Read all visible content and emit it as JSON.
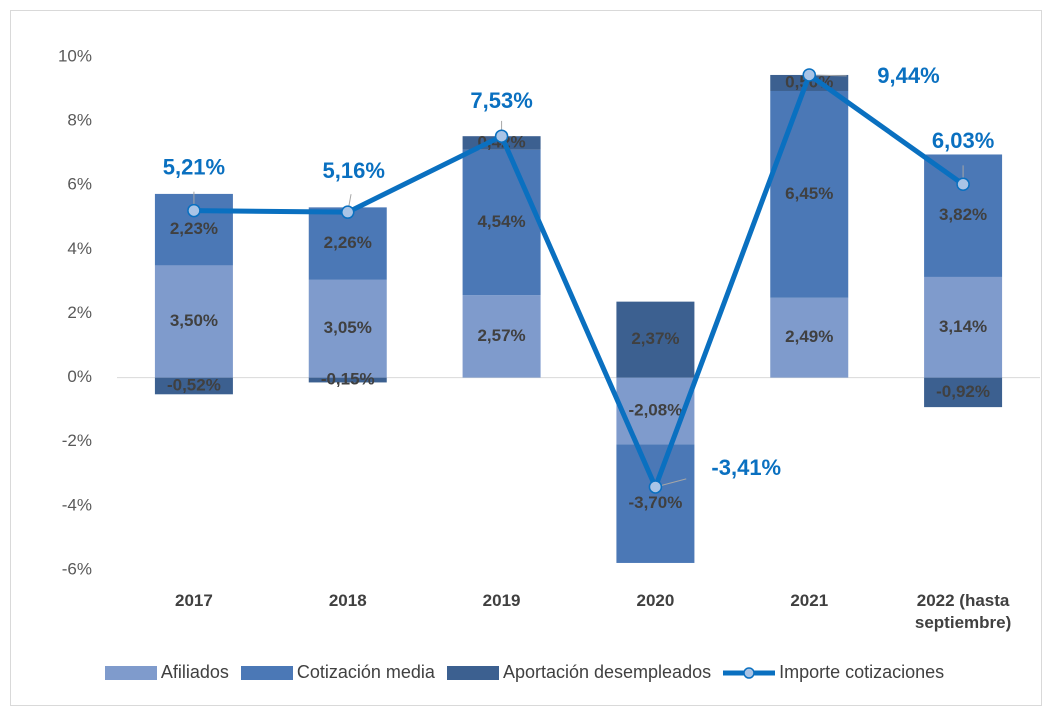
{
  "chart_data": {
    "type": "bar",
    "categories": [
      "2017",
      "2018",
      "2019",
      "2020",
      "2021",
      "2022 (hasta septiembre)"
    ],
    "series": [
      {
        "name": "Afiliados",
        "color": "#7f9bcc",
        "type": "bar",
        "values": [
          3.5,
          3.05,
          2.57,
          -2.08,
          2.49,
          3.14
        ],
        "value_labels": [
          "3,50%",
          "3,05%",
          "2,57%",
          "-2,08%",
          "2,49%",
          "3,14%"
        ]
      },
      {
        "name": "Cotización media",
        "color": "#4b78b6",
        "type": "bar",
        "values": [
          2.23,
          2.26,
          4.54,
          -3.7,
          6.45,
          3.82
        ],
        "value_labels": [
          "2,23%",
          "2,26%",
          "4,54%",
          "-3,70%",
          "6,45%",
          "3,82%"
        ]
      },
      {
        "name": "Aportación desempleados",
        "color": "#3c6090",
        "type": "bar",
        "values": [
          -0.52,
          -0.15,
          0.42,
          2.37,
          0.5,
          -0.92
        ],
        "value_labels": [
          "-0,52%",
          "-0,15%",
          "0,42%",
          "2,37%",
          "0,50%",
          "-0,92%"
        ]
      },
      {
        "name": "Importe cotizaciones",
        "color": "#0a70c0",
        "type": "line",
        "values": [
          5.21,
          5.16,
          7.53,
          -3.41,
          9.44,
          6.03
        ],
        "value_labels": [
          "5,21%",
          "5,16%",
          "7,53%",
          "-3,41%",
          "9,44%",
          "6,03%"
        ]
      }
    ],
    "ylim": [
      -6,
      10
    ],
    "yticks": [
      {
        "value": -6,
        "label": "-6%"
      },
      {
        "value": -4,
        "label": "-4%"
      },
      {
        "value": -2,
        "label": "-2%"
      },
      {
        "value": 0,
        "label": "0%"
      },
      {
        "value": 2,
        "label": "2%"
      },
      {
        "value": 4,
        "label": "4%"
      },
      {
        "value": 6,
        "label": "6%"
      },
      {
        "value": 8,
        "label": "8%"
      },
      {
        "value": 10,
        "label": "10%"
      }
    ],
    "grid": false,
    "legend": "bottom"
  }
}
